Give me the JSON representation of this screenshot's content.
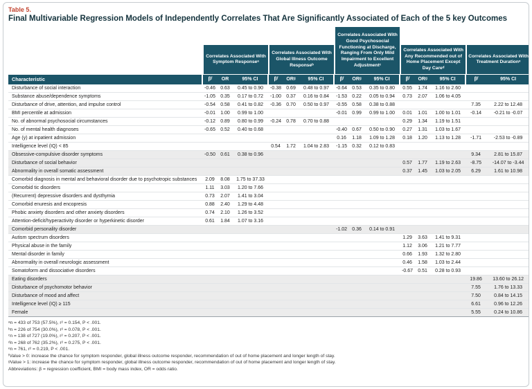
{
  "table": {
    "label": "Table 5.",
    "title": "Final Multivariable Regression Models of Independently Correlates That Are Significantly Associated of Each of the 5 key Outcomes",
    "char_header": "Characteristic",
    "groups": [
      {
        "title": "Correlates Associated With Symptom Responseᵃ",
        "cols": [
          "βᶠ",
          "OR",
          "95% CI"
        ],
        "tall": false
      },
      {
        "title": "Correlates Associated With Global Illness Outcome Responseᵇ",
        "cols": [
          "βᶠ",
          "ORᵍ",
          "95% CI"
        ],
        "tall": false
      },
      {
        "title": "Correlates Associated With Good Psychosocial Functioning at Discharge, Ranging From Only Mild Impairment to Excellent Adjustmentᶜ",
        "cols": [
          "βᶠ",
          "ORᵍ",
          "95% CI"
        ],
        "tall": true
      },
      {
        "title": "Correlates Associated With Any Recommended out of Home Placement Except Day Careᵈ",
        "cols": [
          "βᶠ",
          "ORᵍ",
          "95% CI"
        ],
        "tall": false
      },
      {
        "title": "Correlates Associated With Treatment Durationᵉ",
        "cols": [
          "βᶠ",
          "95% CI"
        ],
        "tall": false
      }
    ],
    "blocks": [
      {
        "shaded": false,
        "rows": [
          {
            "label": "Disturbance of social interaction",
            "cells": [
              "-0.46",
              "0.63",
              "0.45 to 0.90",
              "-0.38",
              "0.69",
              "0.48 to 0.97",
              "-0.64",
              "0.53",
              "0.35 to 0.80",
              "0.55",
              "1.74",
              "1.16 to 2.60",
              "",
              ""
            ]
          },
          {
            "label": "Substance abuse/dependence symptoms",
            "cells": [
              "-1.05",
              "0.35",
              "0.17 to 0.72",
              "-1.00",
              "0.37",
              "0.16 to 0.84",
              "-1.53",
              "0.22",
              "0.05 to 0.94",
              "0.73",
              "2.07",
              "1.06 to 4.05",
              "",
              ""
            ]
          },
          {
            "label": "Disturbance of drive, attention, and impulse control",
            "cells": [
              "-0.54",
              "0.58",
              "0.41 to 0.82",
              "-0.36",
              "0.70",
              "0.50 to 0.97",
              "-0.55",
              "0.58",
              "0.38 to 0.88",
              "",
              "",
              "",
              "7.35",
              "2.22 to 12.48"
            ]
          },
          {
            "label": "BMI percentile at admission",
            "cells": [
              "-0.01",
              "1.00",
              "0.99 to 1.00",
              "",
              "",
              "",
              "-0.01",
              "0.99",
              "0.99 to 1.00",
              "0.01",
              "1.01",
              "1.00 to 1.01",
              "-0.14",
              "-0.21 to -0.07"
            ]
          },
          {
            "label": "No. of abnormal psychosocial circumstances",
            "cells": [
              "-0.12",
              "0.89",
              "0.80 to 0.99",
              "-0.24",
              "0.78",
              "0.70 to 0.88",
              "",
              "",
              "",
              "0.29",
              "1.34",
              "1.19 to 1.51",
              "",
              ""
            ]
          },
          {
            "label": "No. of mental health diagnoses",
            "cells": [
              "-0.65",
              "0.52",
              "0.40 to 0.68",
              "",
              "",
              "",
              "-0.40",
              "0.67",
              "0.50 to 0.90",
              "0.27",
              "1.31",
              "1.03 to 1.67",
              "",
              ""
            ]
          },
          {
            "label": "Age (y) at inpatient admission",
            "cells": [
              "",
              "",
              "",
              "",
              "",
              "",
              "0.16",
              "1.18",
              "1.09 to 1.28",
              "0.18",
              "1.20",
              "1.13 to 1.28",
              "-1.71",
              "-2.53 to -0.89"
            ]
          },
          {
            "label": "Intelligence level (IQ) < 85",
            "cells": [
              "",
              "",
              "",
              "0.54",
              "1.72",
              "1.04 to 2.83",
              "-1.15",
              "0.32",
              "0.12 to 0.83",
              "",
              "",
              "",
              "",
              ""
            ]
          }
        ]
      },
      {
        "shaded": true,
        "rows": [
          {
            "label": "Obsessive-compulsive disorder symptoms",
            "cells": [
              "-0.50",
              "0.61",
              "0.38 to 0.96",
              "",
              "",
              "",
              "",
              "",
              "",
              "",
              "",
              "",
              "9.34",
              "2.81 to 15.87"
            ]
          },
          {
            "label": "Disturbance of social behavior",
            "cells": [
              "",
              "",
              "",
              "",
              "",
              "",
              "",
              "",
              "",
              "0.57",
              "1.77",
              "1.19 to 2.63",
              "-8.75",
              "-14.07 to -3.44"
            ]
          },
          {
            "label": "Abnormality in overall somatic assessment",
            "cells": [
              "",
              "",
              "",
              "",
              "",
              "",
              "",
              "",
              "",
              "0.37",
              "1.45",
              "1.03 to 2.05",
              "6.29",
              "1.61 to 10.98"
            ]
          }
        ]
      },
      {
        "shaded": false,
        "rows": [
          {
            "label": "Comorbid diagnosis in mental and behavioral disorder due to psychotropic substances",
            "cells": [
              "2.09",
              "8.08",
              "1.75 to 37.33",
              "",
              "",
              "",
              "",
              "",
              "",
              "",
              "",
              "",
              "",
              ""
            ]
          },
          {
            "label": "Comorbid tic disorders",
            "cells": [
              "1.11",
              "3.03",
              "1.20 to 7.66",
              "",
              "",
              "",
              "",
              "",
              "",
              "",
              "",
              "",
              "",
              ""
            ]
          },
          {
            "label": "(Recurrent) depressive disorders and dysthymia",
            "cells": [
              "0.73",
              "2.07",
              "1.41 to 3.04",
              "",
              "",
              "",
              "",
              "",
              "",
              "",
              "",
              "",
              "",
              ""
            ]
          },
          {
            "label": "Comorbid enuresis and encopresis",
            "cells": [
              "0.88",
              "2.40",
              "1.29 to 4.48",
              "",
              "",
              "",
              "",
              "",
              "",
              "",
              "",
              "",
              "",
              ""
            ]
          },
          {
            "label": "Phobic anxiety disorders and other anxiety disorders",
            "cells": [
              "0.74",
              "2.10",
              "1.26 to 3.52",
              "",
              "",
              "",
              "",
              "",
              "",
              "",
              "",
              "",
              "",
              ""
            ]
          },
          {
            "label": "Attention-deficit/hyperactivity disorder or hyperkinetic disorder",
            "cells": [
              "0.61",
              "1.84",
              "1.07 to 3.16",
              "",
              "",
              "",
              "",
              "",
              "",
              "",
              "",
              "",
              "",
              ""
            ]
          }
        ]
      },
      {
        "shaded": true,
        "rows": [
          {
            "label": "Comorbid personality disorder",
            "cells": [
              "",
              "",
              "",
              "",
              "",
              "",
              "-1.02",
              "0.36",
              "0.14 to 0.91",
              "",
              "",
              "",
              "",
              ""
            ]
          }
        ]
      },
      {
        "shaded": false,
        "rows": [
          {
            "label": "Autism spectrum disorders",
            "cells": [
              "",
              "",
              "",
              "",
              "",
              "",
              "",
              "",
              "",
              "1.29",
              "3.63",
              "1.41 to 9.31",
              "",
              ""
            ]
          },
          {
            "label": "Physical abuse in the family",
            "cells": [
              "",
              "",
              "",
              "",
              "",
              "",
              "",
              "",
              "",
              "1.12",
              "3.06",
              "1.21 to 7.77",
              "",
              ""
            ]
          },
          {
            "label": "Mental disorder in family",
            "cells": [
              "",
              "",
              "",
              "",
              "",
              "",
              "",
              "",
              "",
              "0.66",
              "1.93",
              "1.32 to 2.80",
              "",
              ""
            ]
          },
          {
            "label": "Abnormality in overall neurologic assessment",
            "cells": [
              "",
              "",
              "",
              "",
              "",
              "",
              "",
              "",
              "",
              "0.46",
              "1.58",
              "1.03 to 2.44",
              "",
              ""
            ]
          },
          {
            "label": "Somatoform and dissociative disorders",
            "cells": [
              "",
              "",
              "",
              "",
              "",
              "",
              "",
              "",
              "",
              "-0.67",
              "0.51",
              "0.28 to 0.93",
              "",
              ""
            ]
          }
        ]
      },
      {
        "shaded": true,
        "rows": [
          {
            "label": "Eating disorders",
            "cells": [
              "",
              "",
              "",
              "",
              "",
              "",
              "",
              "",
              "",
              "",
              "",
              "",
              "19.86",
              "13.60 to 26.12"
            ]
          },
          {
            "label": "Disturbance of psychomotor behavior",
            "cells": [
              "",
              "",
              "",
              "",
              "",
              "",
              "",
              "",
              "",
              "",
              "",
              "",
              "7.55",
              "1.76 to 13.33"
            ]
          },
          {
            "label": "Disturbance of mood and affect",
            "cells": [
              "",
              "",
              "",
              "",
              "",
              "",
              "",
              "",
              "",
              "",
              "",
              "",
              "7.50",
              "0.84 to 14.15"
            ]
          },
          {
            "label": "Intelligence level (IQ) ≥ 115",
            "cells": [
              "",
              "",
              "",
              "",
              "",
              "",
              "",
              "",
              "",
              "",
              "",
              "",
              "6.61",
              "0.96 to 12.26"
            ]
          },
          {
            "label": "Female",
            "cells": [
              "",
              "",
              "",
              "",
              "",
              "",
              "",
              "",
              "",
              "",
              "",
              "",
              "5.55",
              "0.24 to 10.86"
            ]
          }
        ]
      }
    ],
    "footnotes": [
      "ᵃn = 433 of 753 (57.5%), r² = 0.154, P < .001.",
      "ᵇn = 226 of 754 (30.0%), r² = 0.078, P < .001.",
      "ᶜn = 138 of 727 (19.0%), r² = 0.207, P < .001.",
      "ᵈn = 268 of 762 (35.2%), r² = 0.275, P < .001.",
      "ᵉn = 761, r² = 0.219, P < .001.",
      "ᶠValue > 0: increase the chance for symptom responder, global illness outcome responder, recommendation of out of home placement and longer length of stay.",
      "ᵍValue > 1: increase the chance for symptom responder, global illness outcome responder, recommendation of out of home placement and longer length of stay.",
      "Abbreviations: β = regression coefficient, BMI = body mass index, OR = odds ratio."
    ]
  }
}
